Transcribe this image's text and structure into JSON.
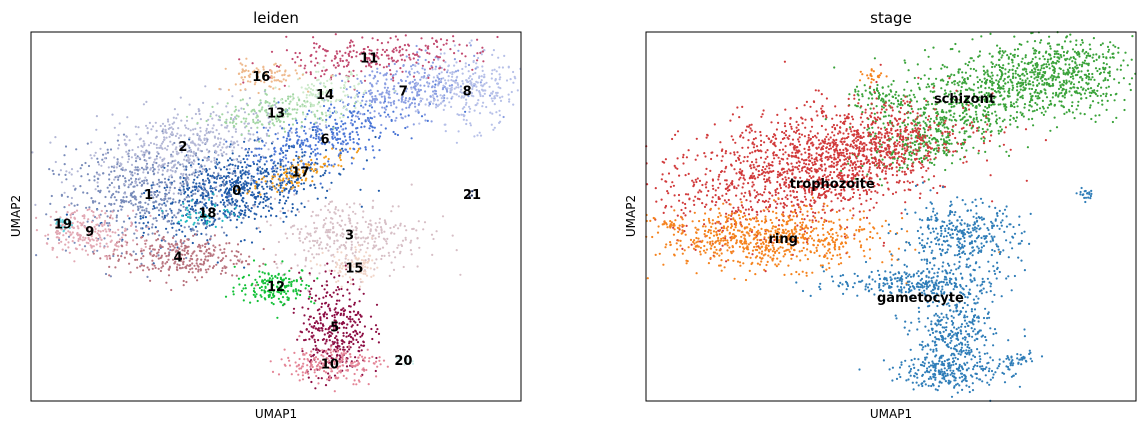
{
  "chart_data": [
    {
      "type": "scatter",
      "title": "leiden",
      "xlabel": "UMAP1",
      "ylabel": "UMAP2",
      "xlim": [
        0,
        100
      ],
      "ylim": [
        0,
        100
      ],
      "ticks": "none",
      "grid": false,
      "legend": "on data",
      "clusters": [
        {
          "label": "0",
          "color": "#1f5aa8",
          "center": [
            42,
            57
          ],
          "spread": [
            10,
            5
          ],
          "angle": 20,
          "n": 700
        },
        {
          "label": "1",
          "color": "#7b8dba",
          "center": [
            24,
            56
          ],
          "spread": [
            9,
            7
          ],
          "angle": 10,
          "n": 520
        },
        {
          "label": "2",
          "color": "#b4b8d6",
          "center": [
            31,
            69
          ],
          "spread": [
            10,
            5
          ],
          "angle": 15,
          "n": 480
        },
        {
          "label": "3",
          "color": "#d7bfc6",
          "center": [
            65,
            45
          ],
          "spread": [
            8,
            5
          ],
          "angle": 0,
          "n": 330
        },
        {
          "label": "4",
          "color": "#b9747f",
          "center": [
            30,
            39
          ],
          "spread": [
            7,
            3
          ],
          "angle": 0,
          "n": 300
        },
        {
          "label": "5",
          "color": "#8d0e44",
          "center": [
            62,
            20
          ],
          "spread": [
            3.5,
            7
          ],
          "angle": 0,
          "n": 360
        },
        {
          "label": "6",
          "color": "#4a76d6",
          "center": [
            60,
            71
          ],
          "spread": [
            9,
            4
          ],
          "angle": 28,
          "n": 360
        },
        {
          "label": "7",
          "color": "#8a9ee2",
          "center": [
            76,
            84
          ],
          "spread": [
            7,
            4
          ],
          "angle": 15,
          "n": 300
        },
        {
          "label": "8",
          "color": "#b6c0e8",
          "center": [
            89,
            84
          ],
          "spread": [
            5,
            5
          ],
          "angle": 0,
          "n": 280
        },
        {
          "label": "9",
          "color": "#e2a9b4",
          "center": [
            12,
            46
          ],
          "spread": [
            5,
            3
          ],
          "angle": 0,
          "n": 220
        },
        {
          "label": "10",
          "color": "#e48597",
          "center": [
            61,
            10
          ],
          "spread": [
            5,
            2.5
          ],
          "angle": 0,
          "n": 200
        },
        {
          "label": "11",
          "color": "#c24a70",
          "center": [
            69,
            93
          ],
          "spread": [
            11,
            2.5
          ],
          "angle": 5,
          "n": 260
        },
        {
          "label": "12",
          "color": "#13c138",
          "center": [
            50,
            31
          ],
          "spread": [
            4,
            2.5
          ],
          "angle": 0,
          "n": 170
        },
        {
          "label": "13",
          "color": "#a2d6a3",
          "center": [
            50,
            78
          ],
          "spread": [
            6,
            2.5
          ],
          "angle": 10,
          "n": 170
        },
        {
          "label": "14",
          "color": "#cdeacb",
          "center": [
            60,
            83
          ],
          "spread": [
            4,
            3
          ],
          "angle": 0,
          "n": 120
        },
        {
          "label": "15",
          "color": "#f1d5c8",
          "center": [
            66,
            36
          ],
          "spread": [
            3,
            2.5
          ],
          "angle": 0,
          "n": 90
        },
        {
          "label": "16",
          "color": "#eeb98d",
          "center": [
            47,
            88
          ],
          "spread": [
            4,
            2
          ],
          "angle": 0,
          "n": 90
        },
        {
          "label": "17",
          "color": "#f29d1e",
          "center": [
            55,
            62
          ],
          "spread": [
            6,
            1.5
          ],
          "angle": 30,
          "n": 110
        },
        {
          "label": "18",
          "color": "#21b9c1",
          "center": [
            36,
            51
          ],
          "spread": [
            3,
            2
          ],
          "angle": 0,
          "n": 50
        },
        {
          "label": "19",
          "color": "#67d5e0",
          "center": [
            6.5,
            48
          ],
          "spread": [
            1,
            1
          ],
          "angle": 0,
          "n": 25
        },
        {
          "label": "20",
          "color": "#d1f0ed",
          "center": [
            76,
            11
          ],
          "spread": [
            1.5,
            0.8
          ],
          "angle": 0,
          "n": 15
        },
        {
          "label": "21",
          "color": "#1b2c5c",
          "center": [
            90,
            56
          ],
          "spread": [
            0.4,
            0.4
          ],
          "angle": 0,
          "n": 3
        }
      ]
    },
    {
      "type": "scatter",
      "title": "stage",
      "xlabel": "UMAP1",
      "ylabel": "UMAP2",
      "xlim": [
        0,
        100
      ],
      "ylim": [
        0,
        100
      ],
      "ticks": "none",
      "grid": false,
      "legend": "on data",
      "groups": [
        {
          "label": "schizont",
          "color": "#3aa33a",
          "label_pos": [
            65,
            82
          ],
          "blobs": [
            {
              "center": [
                70,
                84
              ],
              "spread": [
                11,
                6
              ],
              "angle": 25,
              "n": 650
            },
            {
              "center": [
                85,
                88
              ],
              "spread": [
                7,
                5
              ],
              "angle": 0,
              "n": 450
            },
            {
              "center": [
                58,
                72
              ],
              "spread": [
                7,
                4
              ],
              "angle": 30,
              "n": 300
            },
            {
              "center": [
                48,
                82
              ],
              "spread": [
                3,
                2
              ],
              "angle": 0,
              "n": 80
            }
          ]
        },
        {
          "label": "trophozoite",
          "color": "#d13a3b",
          "label_pos": [
            38,
            59
          ],
          "blobs": [
            {
              "center": [
                32,
                63
              ],
              "spread": [
                15,
                8
              ],
              "angle": 18,
              "n": 1300
            },
            {
              "center": [
                45,
                68
              ],
              "spread": [
                10,
                5
              ],
              "angle": 25,
              "n": 450
            }
          ]
        },
        {
          "label": "ring",
          "color": "#f5831e",
          "label_pos": [
            28,
            44
          ],
          "blobs": [
            {
              "center": [
                25,
                44
              ],
              "spread": [
                11,
                4
              ],
              "angle": 0,
              "n": 720
            },
            {
              "center": [
                5.5,
                48
              ],
              "spread": [
                1,
                1
              ],
              "angle": 0,
              "n": 25
            },
            {
              "center": [
                46,
                88
              ],
              "spread": [
                1.5,
                1
              ],
              "angle": 0,
              "n": 20
            }
          ]
        },
        {
          "label": "gametocyte",
          "color": "#2f7db8",
          "label_pos": [
            56,
            28
          ],
          "blobs": [
            {
              "center": [
                64,
                44
              ],
              "spread": [
                6,
                5
              ],
              "angle": 0,
              "n": 380
            },
            {
              "center": [
                55,
                32
              ],
              "spread": [
                9,
                2
              ],
              "angle": 0,
              "n": 260
            },
            {
              "center": [
                63,
                17
              ],
              "spread": [
                4,
                7
              ],
              "angle": 0,
              "n": 380
            },
            {
              "center": [
                62,
                8
              ],
              "spread": [
                6,
                2
              ],
              "angle": 0,
              "n": 200
            },
            {
              "center": [
                76,
                11
              ],
              "spread": [
                2,
                0.8
              ],
              "angle": 15,
              "n": 40
            },
            {
              "center": [
                90,
                56
              ],
              "spread": [
                1,
                0.7
              ],
              "angle": 0,
              "n": 20
            }
          ]
        }
      ]
    }
  ]
}
